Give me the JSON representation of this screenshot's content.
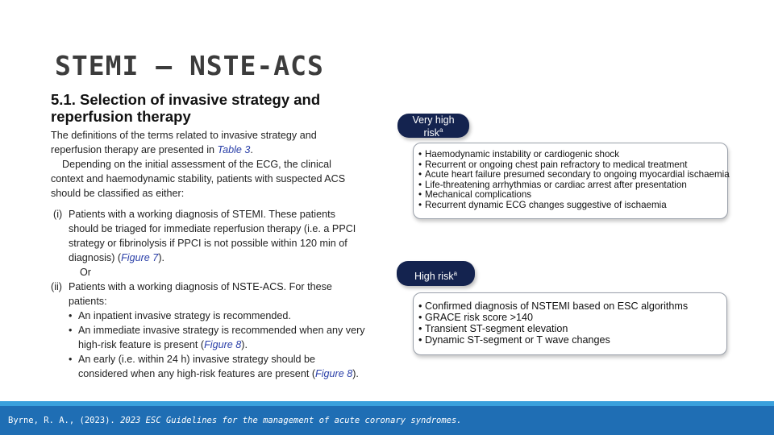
{
  "slide": {
    "title": "STEMI – NSTE-ACS"
  },
  "section": {
    "heading": "5.1. Selection of invasive strategy and reperfusion therapy",
    "intro_before_ref": "The definitions of the terms related to invasive strategy and reperfusion therapy are presented in ",
    "intro_ref": "Table 3",
    "intro_after_ref": ".",
    "para2": "Depending on the initial assessment of the ECG, the clinical context and haemodynamic stability, patients with suspected ACS should be classified as either:",
    "item_i": {
      "num": "(i)",
      "text_before_ref": "Patients with a working diagnosis of STEMI. These patients should be triaged for immediate reperfusion therapy (i.e. a PPCI strategy or fibrinolysis if PPCI is not possible within 120 min of diagnosis) (",
      "ref": "Figure 7",
      "text_after_ref": ")."
    },
    "or_text": "Or",
    "item_ii": {
      "num": "(ii)",
      "text": "Patients with a working diagnosis of NSTE-ACS. For these patients:",
      "bullets": [
        {
          "before": "An inpatient invasive strategy is recommended.",
          "ref": "",
          "after": ""
        },
        {
          "before": "An immediate invasive strategy is recommended when any very high-risk feature is present (",
          "ref": "Figure 8",
          "after": ")."
        },
        {
          "before": "An early (i.e. within 24 h) invasive strategy should be considered when any high-risk features are present (",
          "ref": "Figure 8",
          "after": ")."
        }
      ]
    }
  },
  "very_high_risk": {
    "label_line1": "Very high",
    "label_line2": "risk",
    "sup": "a",
    "items": [
      "Haemodynamic instability or cardiogenic shock",
      "Recurrent or ongoing chest pain refractory to medical treatment",
      "Acute heart failure presumed secondary to ongoing myocardial ischaemia",
      "Life-threatening arrhythmias or cardiac arrest after presentation",
      "Mechanical complications",
      "Recurrent dynamic ECG changes suggestive of ischaemia"
    ]
  },
  "high_risk": {
    "label": "High risk",
    "sup": "a",
    "items": [
      "Confirmed diagnosis of NSTEMI based on ESC algorithms",
      "GRACE risk score >140",
      "Transient ST-segment elevation",
      "Dynamic ST-segment or T wave changes"
    ]
  },
  "footer": {
    "citation_prefix": "Byrne, R. A., (2023). ",
    "citation_title": "2023 ESC Guidelines for the management of acute coronary syndromes."
  },
  "colors": {
    "pill_bg": "#14234f",
    "footer_bg": "#1f6eb4",
    "footer_stripe": "#3aa0dc",
    "ref_text": "#2a3fa8"
  }
}
